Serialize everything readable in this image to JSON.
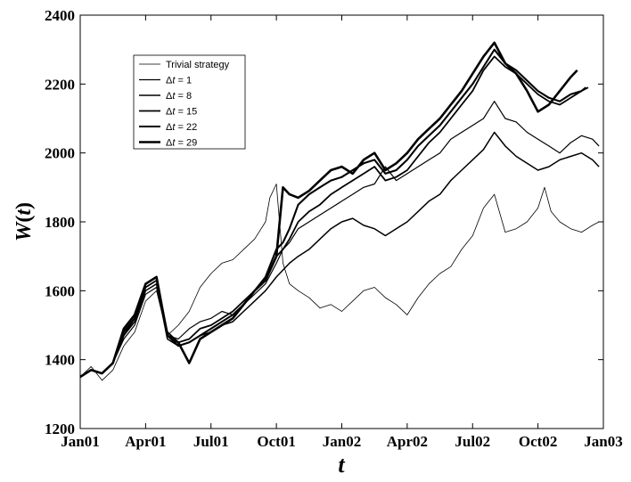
{
  "chart_data": {
    "type": "line",
    "xlabel": "t",
    "ylabel": "W(t)",
    "ylim": [
      1200,
      2400
    ],
    "yticks": [
      1200,
      1400,
      1600,
      1800,
      2000,
      2200,
      2400
    ],
    "x_tick_labels": [
      "Jan01",
      "Apr01",
      "Jul01",
      "Oct01",
      "Jan02",
      "Apr02",
      "Jul02",
      "Oct02",
      "Jan03"
    ],
    "x_domain": [
      0,
      24
    ],
    "grid": false,
    "legend_position": "top-left",
    "series": [
      {
        "name": "Trivial strategy",
        "label_prefix": "",
        "label_var": "",
        "label_suffix": "Trivial strategy",
        "x": [
          0,
          0.5,
          1.0,
          1.5,
          2.0,
          2.5,
          3.0,
          3.5,
          4.0,
          4.5,
          5.0,
          5.5,
          6.0,
          6.5,
          7.0,
          7.5,
          8.0,
          8.5,
          8.7,
          9.0,
          9.3,
          9.6,
          10.0,
          10.5,
          11.0,
          11.5,
          12.0,
          12.5,
          13.0,
          13.5,
          14.0,
          14.5,
          15.0,
          15.5,
          16.0,
          16.5,
          17.0,
          17.5,
          18.0,
          18.5,
          19.0,
          19.5,
          20.0,
          20.5,
          21.0,
          21.3,
          21.6,
          22.0,
          22.5,
          23.0,
          23.5,
          23.8
        ],
        "values": [
          1350,
          1380,
          1340,
          1370,
          1440,
          1480,
          1570,
          1600,
          1470,
          1500,
          1540,
          1610,
          1650,
          1680,
          1690,
          1720,
          1750,
          1800,
          1870,
          1910,
          1680,
          1620,
          1600,
          1580,
          1550,
          1560,
          1540,
          1570,
          1600,
          1610,
          1580,
          1560,
          1530,
          1580,
          1620,
          1650,
          1670,
          1720,
          1760,
          1840,
          1880,
          1770,
          1780,
          1800,
          1840,
          1900,
          1830,
          1800,
          1780,
          1770,
          1790,
          1800
        ],
        "stroke_width": 0.8
      },
      {
        "name": "Δt = 1",
        "label_prefix": "Δ",
        "label_var": "t",
        "label_suffix": " = 1",
        "x": [
          0,
          0.5,
          1.0,
          1.5,
          2.0,
          2.5,
          3.0,
          3.5,
          4.0,
          4.5,
          5.0,
          5.5,
          6.0,
          6.5,
          7.0,
          7.5,
          8.0,
          8.5,
          9.0,
          9.3,
          9.6,
          10.0,
          10.5,
          11.0,
          11.5,
          12.0,
          12.5,
          13.0,
          13.5,
          14.0,
          14.5,
          15.0,
          15.5,
          16.0,
          16.5,
          17.0,
          17.5,
          18.0,
          18.5,
          19.0,
          19.5,
          20.0,
          20.5,
          21.0,
          21.5,
          22.0,
          22.5,
          23.0,
          23.5,
          23.8
        ],
        "values": [
          1350,
          1370,
          1360,
          1390,
          1460,
          1500,
          1590,
          1610,
          1470,
          1460,
          1490,
          1510,
          1520,
          1540,
          1530,
          1560,
          1590,
          1620,
          1680,
          1720,
          1740,
          1780,
          1800,
          1820,
          1840,
          1860,
          1880,
          1900,
          1910,
          1960,
          1920,
          1940,
          1960,
          1980,
          2000,
          2040,
          2060,
          2080,
          2100,
          2150,
          2100,
          2090,
          2060,
          2040,
          2020,
          2000,
          2030,
          2050,
          2040,
          2020
        ],
        "stroke_width": 1.2
      },
      {
        "name": "Δt = 8",
        "label_prefix": "Δ",
        "label_var": "t",
        "label_suffix": " = 8",
        "x": [
          0,
          0.5,
          1.0,
          1.5,
          2.0,
          2.5,
          3.0,
          3.5,
          4.0,
          4.5,
          5.0,
          5.5,
          6.0,
          6.5,
          7.0,
          7.5,
          8.0,
          8.5,
          9.0,
          9.3,
          9.6,
          10.0,
          10.5,
          11.0,
          11.5,
          12.0,
          12.5,
          13.0,
          13.5,
          14.0,
          14.5,
          15.0,
          15.5,
          16.0,
          16.5,
          17.0,
          17.5,
          18.0,
          18.5,
          19.0,
          19.5,
          20.0,
          20.5,
          21.0,
          21.5,
          22.0,
          22.5,
          23.0,
          23.5,
          23.8
        ],
        "values": [
          1350,
          1370,
          1360,
          1390,
          1470,
          1510,
          1600,
          1620,
          1460,
          1440,
          1450,
          1470,
          1480,
          1500,
          1510,
          1540,
          1570,
          1600,
          1640,
          1660,
          1680,
          1700,
          1720,
          1750,
          1780,
          1800,
          1810,
          1790,
          1780,
          1760,
          1780,
          1800,
          1830,
          1860,
          1880,
          1920,
          1950,
          1980,
          2010,
          2060,
          2020,
          1990,
          1970,
          1950,
          1960,
          1980,
          1990,
          2000,
          1980,
          1960
        ],
        "stroke_width": 1.5
      },
      {
        "name": "Δt = 15",
        "label_prefix": "Δ",
        "label_var": "t",
        "label_suffix": " = 15",
        "x": [
          0,
          0.5,
          1.0,
          1.5,
          2.0,
          2.5,
          3.0,
          3.5,
          4.0,
          4.5,
          5.0,
          5.5,
          6.0,
          6.5,
          7.0,
          7.5,
          8.0,
          8.5,
          9.0,
          9.3,
          9.6,
          10.0,
          10.5,
          11.0,
          11.5,
          12.0,
          12.5,
          13.0,
          13.5,
          14.0,
          14.5,
          15.0,
          15.5,
          16.0,
          16.5,
          17.0,
          17.5,
          18.0,
          18.5,
          19.0,
          19.5,
          20.0,
          20.5,
          21.0,
          21.5,
          22.0,
          22.5,
          23.0,
          23.3
        ],
        "values": [
          1350,
          1370,
          1360,
          1390,
          1470,
          1520,
          1610,
          1630,
          1480,
          1450,
          1460,
          1490,
          1500,
          1520,
          1540,
          1570,
          1600,
          1630,
          1700,
          1720,
          1750,
          1800,
          1830,
          1850,
          1880,
          1900,
          1920,
          1940,
          1960,
          1920,
          1930,
          1950,
          1990,
          2030,
          2060,
          2100,
          2140,
          2180,
          2240,
          2280,
          2250,
          2230,
          2200,
          2170,
          2150,
          2140,
          2160,
          2180,
          2190
        ],
        "stroke_width": 1.8
      },
      {
        "name": "Δt = 22",
        "label_prefix": "Δ",
        "label_var": "t",
        "label_suffix": " = 22",
        "x": [
          0,
          0.5,
          1.0,
          1.5,
          2.0,
          2.5,
          3.0,
          3.5,
          4.0,
          4.5,
          5.0,
          5.5,
          6.0,
          6.5,
          7.0,
          7.5,
          8.0,
          8.5,
          9.0,
          9.3,
          9.6,
          10.0,
          10.5,
          11.0,
          11.5,
          12.0,
          12.5,
          13.0,
          13.5,
          14.0,
          14.5,
          15.0,
          15.5,
          16.0,
          16.5,
          17.0,
          17.5,
          18.0,
          18.5,
          19.0,
          19.5,
          20.0,
          20.5,
          21.0,
          21.5,
          22.0,
          22.5,
          23.0,
          23.2
        ],
        "values": [
          1350,
          1370,
          1360,
          1390,
          1480,
          1520,
          1620,
          1640,
          1470,
          1440,
          1450,
          1470,
          1490,
          1510,
          1530,
          1560,
          1600,
          1640,
          1720,
          1740,
          1780,
          1850,
          1880,
          1900,
          1920,
          1930,
          1950,
          1970,
          1980,
          1940,
          1950,
          1980,
          2020,
          2050,
          2080,
          2120,
          2160,
          2200,
          2250,
          2300,
          2260,
          2240,
          2210,
          2180,
          2160,
          2150,
          2170,
          2180,
          2190
        ],
        "stroke_width": 2.1
      },
      {
        "name": "Δt = 29",
        "label_prefix": "Δ",
        "label_var": "t",
        "label_suffix": " = 29",
        "x": [
          0,
          0.5,
          1.0,
          1.5,
          2.0,
          2.5,
          3.0,
          3.5,
          4.0,
          4.5,
          5.0,
          5.5,
          6.0,
          6.5,
          7.0,
          7.5,
          8.0,
          8.5,
          9.0,
          9.3,
          9.6,
          10.0,
          10.5,
          11.0,
          11.5,
          12.0,
          12.5,
          13.0,
          13.5,
          14.0,
          14.5,
          15.0,
          15.5,
          16.0,
          16.5,
          17.0,
          17.5,
          18.0,
          18.5,
          19.0,
          19.5,
          20.0,
          20.5,
          21.0,
          21.5,
          22.0,
          22.5,
          22.8
        ],
        "values": [
          1350,
          1370,
          1360,
          1390,
          1490,
          1530,
          1620,
          1640,
          1470,
          1450,
          1390,
          1460,
          1480,
          1500,
          1520,
          1560,
          1600,
          1630,
          1700,
          1900,
          1880,
          1870,
          1890,
          1920,
          1950,
          1960,
          1940,
          1980,
          2000,
          1950,
          1970,
          2000,
          2040,
          2070,
          2100,
          2140,
          2180,
          2230,
          2280,
          2320,
          2260,
          2230,
          2180,
          2120,
          2140,
          2180,
          2220,
          2240
        ],
        "stroke_width": 2.6
      }
    ]
  }
}
